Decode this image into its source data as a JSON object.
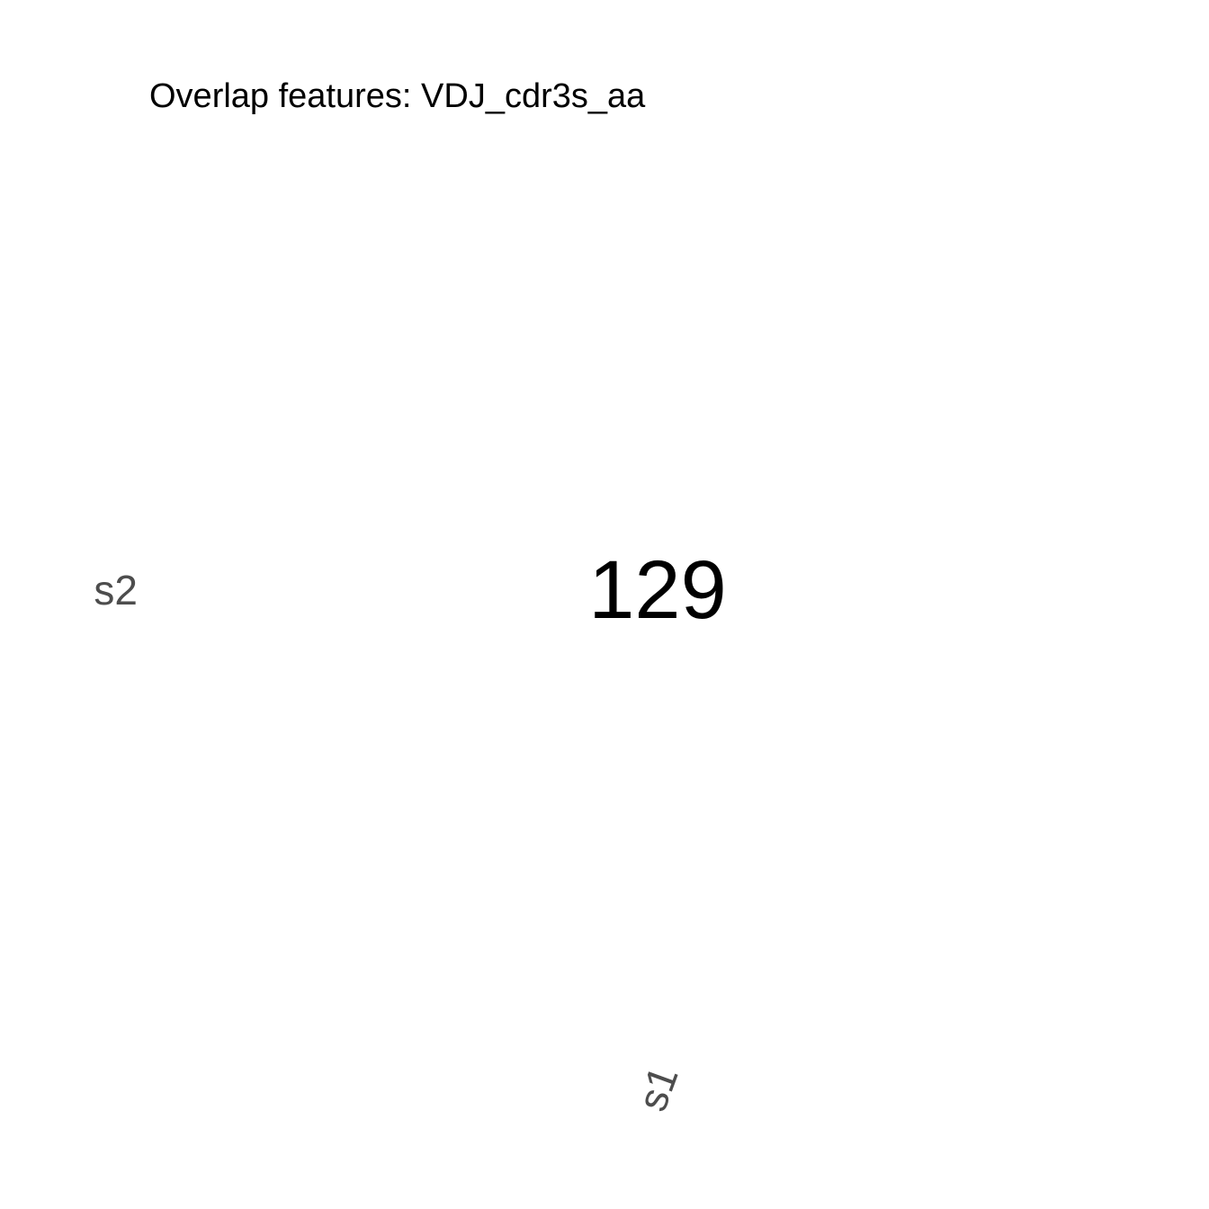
{
  "chart_data": {
    "type": "heatmap",
    "title": "Overlap features: VDJ_cdr3s_aa",
    "x_categories": [
      "s1"
    ],
    "y_categories": [
      "s2"
    ],
    "cells": [
      {
        "x": "s1",
        "y": "s2",
        "value": 129
      }
    ],
    "grid": false,
    "legend": "none",
    "cell_fill_color": "#ffffff",
    "label_color": "#000000",
    "tick_color": "#4d4d4d"
  }
}
